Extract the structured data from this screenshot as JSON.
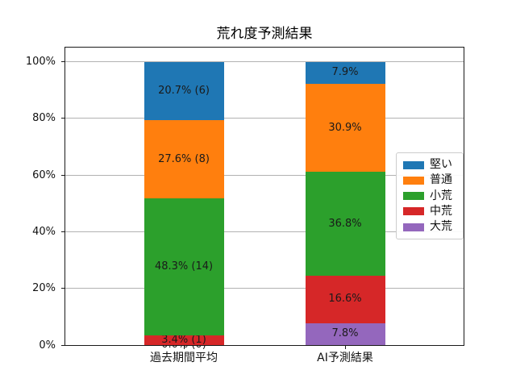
{
  "chart_data": {
    "type": "bar",
    "stacked": true,
    "title": "荒れ度予測結果",
    "categories": [
      "過去期間平均",
      "AI予測結果"
    ],
    "series": [
      {
        "name": "大荒",
        "color": "#9467bd",
        "values": [
          0.0,
          7.8
        ],
        "labels": [
          "0.0% (0)",
          "7.8%"
        ]
      },
      {
        "name": "中荒",
        "color": "#d62728",
        "values": [
          3.4,
          16.6
        ],
        "labels": [
          "3.4% (1)",
          "16.6%"
        ]
      },
      {
        "name": "小荒",
        "color": "#2ca02c",
        "values": [
          48.3,
          36.8
        ],
        "labels": [
          "48.3% (14)",
          "36.8%"
        ]
      },
      {
        "name": "普通",
        "color": "#ff7f0e",
        "values": [
          27.6,
          30.9
        ],
        "labels": [
          "27.6% (8)",
          "30.9%"
        ]
      },
      {
        "name": "堅い",
        "color": "#1f77b4",
        "values": [
          20.7,
          7.9
        ],
        "labels": [
          "20.7% (6)",
          "7.9%"
        ]
      }
    ],
    "legend": {
      "position": "center-right",
      "order_top_to_bottom": [
        "堅い",
        "普通",
        "小荒",
        "中荒",
        "大荒"
      ]
    },
    "y_ticks": [
      {
        "value": 0,
        "label": "0%"
      },
      {
        "value": 20,
        "label": "20%"
      },
      {
        "value": 40,
        "label": "40%"
      },
      {
        "value": 60,
        "label": "60%"
      },
      {
        "value": 80,
        "label": "80%"
      },
      {
        "value": 100,
        "label": "100%"
      }
    ],
    "ylim": [
      0,
      105
    ],
    "grid": true,
    "xlabel": "",
    "ylabel": ""
  }
}
